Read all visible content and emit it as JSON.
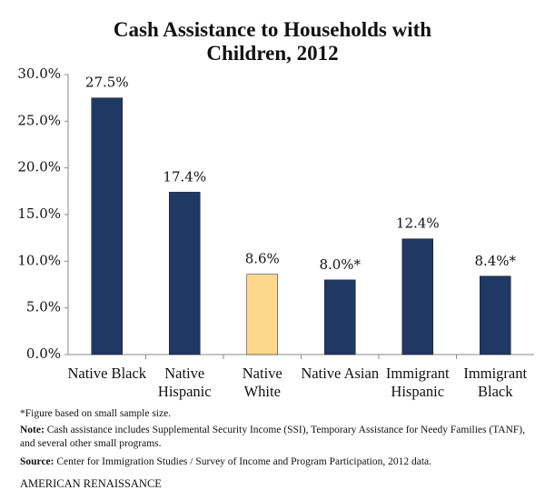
{
  "chart_data": {
    "type": "bar",
    "title": "Cash Assistance to Households with Children, 2012",
    "categories": [
      "Native Black",
      "Native Hispanic",
      "Native White",
      "Native Asian",
      "Immigrant Hispanic",
      "Immigrant Black"
    ],
    "values": [
      27.5,
      17.4,
      8.6,
      8.0,
      12.4,
      8.4
    ],
    "value_labels": [
      "27.5%",
      "17.4%",
      "8.6%",
      "8.0%*",
      "12.4%",
      "8.4%*"
    ],
    "colors": [
      "#1f3864",
      "#1f3864",
      "#fdd78b",
      "#1f3864",
      "#1f3864",
      "#1f3864"
    ],
    "ylim": [
      0,
      30
    ],
    "yticks": [
      {
        "value": 0,
        "label": "0.0%"
      },
      {
        "value": 5,
        "label": "5.0%"
      },
      {
        "value": 10,
        "label": "10.0%"
      },
      {
        "value": 15,
        "label": "15.0%"
      },
      {
        "value": 20,
        "label": "20.0%"
      },
      {
        "value": 25,
        "label": "25.0%"
      },
      {
        "value": 30,
        "label": "30.0%"
      }
    ],
    "grid": false,
    "footnote": "*Figure based on small sample size.",
    "note_label": "Note:",
    "note": "Cash assistance includes Supplemental Security Income (SSI), Temporary Assistance for Needy Families (TANF), and several other small programs.",
    "source_label": "Source:",
    "source": "Center for Immigration Studies / Survey of Income and Program Participation, 2012 data.",
    "brand": "AMERICAN RENAISSANCE"
  }
}
